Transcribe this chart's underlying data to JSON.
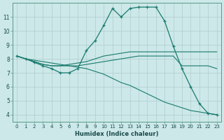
{
  "xlabel": "Humidex (Indice chaleur)",
  "bg_color": "#cce8e8",
  "grid_color": "#b0cccc",
  "line_color": "#1a7a6e",
  "xlim": [
    -0.5,
    23.5
  ],
  "ylim": [
    3.5,
    12.0
  ],
  "yticks": [
    4,
    5,
    6,
    7,
    8,
    9,
    10,
    11
  ],
  "xticks": [
    0,
    1,
    2,
    3,
    4,
    5,
    6,
    7,
    8,
    9,
    10,
    11,
    12,
    13,
    14,
    15,
    16,
    17,
    18,
    19,
    20,
    21,
    22,
    23
  ],
  "series": [
    {
      "x": [
        0,
        1,
        2,
        3,
        4,
        5,
        6,
        7,
        8,
        9,
        10,
        11,
        12,
        13,
        14,
        15,
        16,
        17,
        18,
        19,
        20,
        21,
        22,
        23
      ],
      "y": [
        8.2,
        8.0,
        7.75,
        7.5,
        7.3,
        7.0,
        7.0,
        7.3,
        8.6,
        9.3,
        10.4,
        11.6,
        11.0,
        11.6,
        11.7,
        11.7,
        11.7,
        10.7,
        8.9,
        7.3,
        6.0,
        4.8,
        4.1,
        4.0
      ],
      "marker": true
    },
    {
      "x": [
        0,
        1,
        2,
        3,
        4,
        5,
        6,
        7,
        8,
        9,
        10,
        11,
        12,
        13,
        14,
        15,
        16,
        17,
        18,
        19,
        20,
        21,
        22,
        23
      ],
      "y": [
        8.2,
        8.0,
        7.8,
        7.6,
        7.5,
        7.5,
        7.6,
        7.7,
        7.8,
        8.0,
        8.2,
        8.3,
        8.4,
        8.5,
        8.5,
        8.5,
        8.5,
        8.5,
        8.5,
        8.5,
        8.5,
        8.5,
        8.5,
        8.5
      ],
      "marker": false
    },
    {
      "x": [
        0,
        1,
        2,
        3,
        4,
        5,
        6,
        7,
        8,
        9,
        10,
        11,
        12,
        13,
        14,
        15,
        16,
        17,
        18,
        19,
        20,
        21,
        22,
        23
      ],
      "y": [
        8.2,
        8.0,
        7.8,
        7.6,
        7.5,
        7.5,
        7.5,
        7.5,
        7.6,
        7.7,
        7.8,
        7.9,
        8.0,
        8.1,
        8.2,
        8.2,
        8.2,
        8.2,
        8.2,
        7.5,
        7.5,
        7.5,
        7.5,
        7.3
      ],
      "marker": false
    },
    {
      "x": [
        0,
        1,
        2,
        3,
        4,
        5,
        6,
        7,
        8,
        9,
        10,
        11,
        12,
        13,
        14,
        15,
        16,
        17,
        18,
        19,
        20,
        21,
        22,
        23
      ],
      "y": [
        8.2,
        8.0,
        7.9,
        7.8,
        7.7,
        7.6,
        7.5,
        7.4,
        7.3,
        7.1,
        6.9,
        6.6,
        6.3,
        6.1,
        5.8,
        5.5,
        5.2,
        4.9,
        4.7,
        4.5,
        4.3,
        4.2,
        4.1,
        4.0
      ],
      "marker": false
    }
  ]
}
